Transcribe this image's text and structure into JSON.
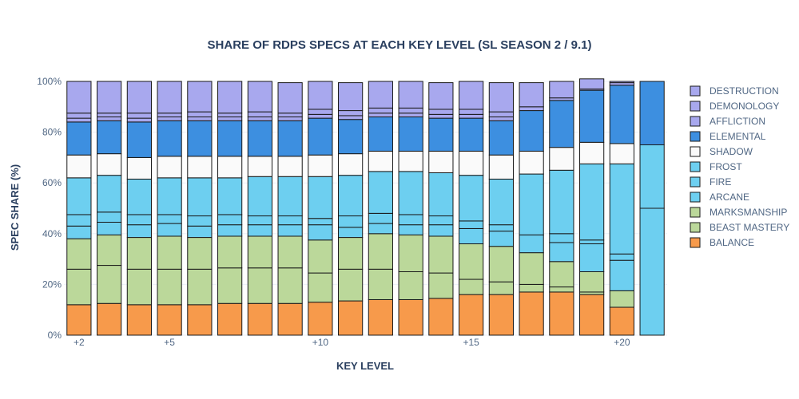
{
  "chart_data": {
    "type": "bar",
    "stacked": true,
    "title": "SHARE OF RDPS SPECS AT EACH KEY LEVEL (SL SEASON 2 / 9.1)",
    "xlabel": "KEY LEVEL",
    "ylabel": "SPEC SHARE (%)",
    "ylim": [
      0,
      100
    ],
    "x": [
      2,
      3,
      4,
      5,
      6,
      7,
      8,
      9,
      10,
      11,
      12,
      13,
      14,
      15,
      16,
      17,
      18,
      19,
      20,
      21
    ],
    "x_ticks": [
      {
        "value": 2,
        "label": "+2"
      },
      {
        "value": 5,
        "label": "+5"
      },
      {
        "value": 10,
        "label": "+10"
      },
      {
        "value": 15,
        "label": "+15"
      },
      {
        "value": 20,
        "label": "+20"
      }
    ],
    "y_ticks": [
      {
        "value": 0,
        "label": "0%"
      },
      {
        "value": 20,
        "label": "20%"
      },
      {
        "value": 40,
        "label": "40%"
      },
      {
        "value": 60,
        "label": "60%"
      },
      {
        "value": 80,
        "label": "80%"
      },
      {
        "value": 100,
        "label": "100%"
      }
    ],
    "legend_position": "right",
    "series": [
      {
        "name": "BALANCE",
        "color": "#f79a4b",
        "values": [
          12,
          12.5,
          12,
          12,
          12,
          12.5,
          12.5,
          12.5,
          13,
          13.5,
          14,
          14,
          14.5,
          16,
          16,
          17,
          17,
          16,
          11,
          0
        ]
      },
      {
        "name": "BEAST MASTERY",
        "color": "#bbd89a",
        "values": [
          14,
          15,
          14,
          14,
          14,
          14,
          14,
          14,
          11.5,
          12.5,
          12,
          11,
          10,
          6,
          5,
          3,
          2,
          1,
          6.5,
          0
        ]
      },
      {
        "name": "MARKSMANSHIP",
        "color": "#bbd89a",
        "values": [
          12,
          12,
          12.5,
          13,
          12.5,
          12.5,
          12.5,
          12.5,
          13,
          12.5,
          14,
          14.5,
          14.5,
          14,
          14,
          12.5,
          10,
          8,
          0,
          0
        ]
      },
      {
        "name": "ARCANE",
        "color": "#6dcff0",
        "values": [
          5,
          5,
          5,
          5,
          4.5,
          4.5,
          4.5,
          4.5,
          6,
          4,
          4,
          4,
          4.5,
          6,
          6,
          7,
          7.5,
          11,
          12,
          50
        ]
      },
      {
        "name": "FIRE",
        "color": "#6dcff0",
        "values": [
          4.5,
          4,
          4,
          3.5,
          4,
          4,
          3.5,
          3.5,
          2.5,
          4.5,
          4,
          4,
          3.5,
          3,
          2.5,
          0,
          3.5,
          1.5,
          2.5,
          0
        ]
      },
      {
        "name": "FROST",
        "color": "#6dcff0",
        "values": [
          14.5,
          14.5,
          14,
          14.5,
          15,
          14.5,
          15.5,
          15.5,
          16.5,
          16,
          16.5,
          17,
          17,
          18,
          18,
          24,
          25,
          30,
          35.5,
          25
        ]
      },
      {
        "name": "SHADOW",
        "color": "#fafafa",
        "values": [
          9,
          8.5,
          8.5,
          8.5,
          8.5,
          8.5,
          8,
          8,
          8.5,
          8.5,
          8,
          8,
          8.5,
          9.5,
          9.5,
          9,
          9,
          8.5,
          8,
          0
        ]
      },
      {
        "name": "ELEMENTAL",
        "color": "#3d8fe0",
        "values": [
          13,
          13,
          14,
          14,
          14,
          14,
          14,
          14,
          14.5,
          13.5,
          13.5,
          13.5,
          13,
          13,
          13.5,
          16,
          18.5,
          20.5,
          23,
          25
        ]
      },
      {
        "name": "AFFLICTION",
        "color": "#a8a8ee",
        "values": [
          1.5,
          1.5,
          1.5,
          1.5,
          1.5,
          1.5,
          1.5,
          1.5,
          1.5,
          1.5,
          1.5,
          1.5,
          1.5,
          1.5,
          1.5,
          1.5,
          1,
          0.5,
          1,
          0
        ]
      },
      {
        "name": "DEMONOLOGY",
        "color": "#a8a8ee",
        "values": [
          2,
          1.5,
          2,
          1.5,
          2,
          1.5,
          2,
          1.5,
          2,
          2,
          2,
          2,
          2,
          2,
          2,
          0,
          0,
          0,
          0,
          0
        ]
      },
      {
        "name": "DESTRUCTION",
        "color": "#a8a8ee",
        "values": [
          12.5,
          12.5,
          12.5,
          12.5,
          12,
          12.5,
          12,
          12,
          11,
          11,
          10.5,
          10.5,
          10.5,
          11,
          11.5,
          9.5,
          6.5,
          4,
          0.5,
          0
        ]
      }
    ]
  }
}
